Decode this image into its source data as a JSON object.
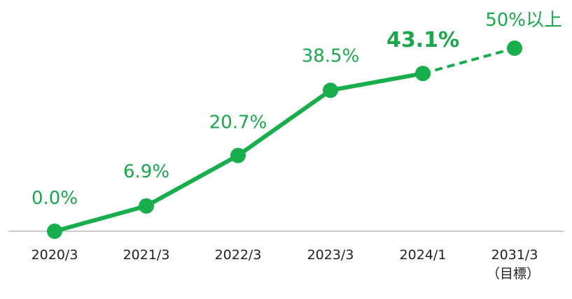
{
  "chart_data": {
    "type": "line",
    "categories": [
      "2020/3",
      "2021/3",
      "2022/3",
      "2023/3",
      "2024/1",
      "2031/3"
    ],
    "category_sublabels": [
      "",
      "",
      "",
      "",
      "",
      "（目標）"
    ],
    "values": [
      0.0,
      6.9,
      20.7,
      38.5,
      43.1,
      50
    ],
    "data_labels": [
      "0.0%",
      "6.9%",
      "20.7%",
      "38.5%",
      "43.1%",
      "50%以上"
    ],
    "emphasized_label_index": 4,
    "dashed_segment_from_index": 4,
    "ylim": [
      0,
      55
    ],
    "grid": false,
    "colors": {
      "line": "#18ad4d",
      "label": "#1aa84c",
      "axis": "#cccccc",
      "tick_text": "#222222"
    }
  }
}
